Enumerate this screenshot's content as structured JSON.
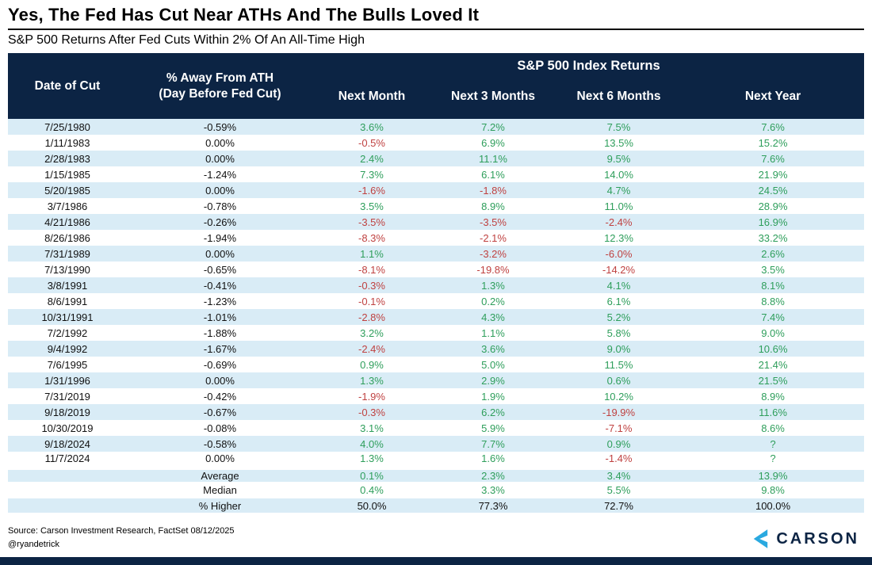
{
  "page": {
    "title": "Yes, The Fed Has Cut Near ATHs And The Bulls Loved It",
    "subtitle": "S&P 500 Returns After Fed Cuts Within 2% Of An All-Time High"
  },
  "chart_data": {
    "type": "table",
    "title": "Yes, The Fed Has Cut Near ATHs And The Bulls Loved It",
    "subtitle": "S&P 500 Returns After Fed Cuts Within 2% Of An All-Time High",
    "group_header": "S&P 500 Index Returns",
    "columns": [
      "Date of Cut",
      "% Away From ATH\n(Day Before Fed Cut)",
      "Next Month",
      "Next 3 Months",
      "Next 6 Months",
      "Next Year"
    ],
    "rows": [
      [
        "7/25/1980",
        "-0.59%",
        "3.6%",
        "7.2%",
        "7.5%",
        "7.6%"
      ],
      [
        "1/11/1983",
        "0.00%",
        "-0.5%",
        "6.9%",
        "13.5%",
        "15.2%"
      ],
      [
        "2/28/1983",
        "0.00%",
        "2.4%",
        "11.1%",
        "9.5%",
        "7.6%"
      ],
      [
        "1/15/1985",
        "-1.24%",
        "7.3%",
        "6.1%",
        "14.0%",
        "21.9%"
      ],
      [
        "5/20/1985",
        "0.00%",
        "-1.6%",
        "-1.8%",
        "4.7%",
        "24.5%"
      ],
      [
        "3/7/1986",
        "-0.78%",
        "3.5%",
        "8.9%",
        "11.0%",
        "28.9%"
      ],
      [
        "4/21/1986",
        "-0.26%",
        "-3.5%",
        "-3.5%",
        "-2.4%",
        "16.9%"
      ],
      [
        "8/26/1986",
        "-1.94%",
        "-8.3%",
        "-2.1%",
        "12.3%",
        "33.2%"
      ],
      [
        "7/31/1989",
        "0.00%",
        "1.1%",
        "-3.2%",
        "-6.0%",
        "2.6%"
      ],
      [
        "7/13/1990",
        "-0.65%",
        "-8.1%",
        "-19.8%",
        "-14.2%",
        "3.5%"
      ],
      [
        "3/8/1991",
        "-0.41%",
        "-0.3%",
        "1.3%",
        "4.1%",
        "8.1%"
      ],
      [
        "8/6/1991",
        "-1.23%",
        "-0.1%",
        "0.2%",
        "6.1%",
        "8.8%"
      ],
      [
        "10/31/1991",
        "-1.01%",
        "-2.8%",
        "4.3%",
        "5.2%",
        "7.4%"
      ],
      [
        "7/2/1992",
        "-1.88%",
        "3.2%",
        "1.1%",
        "5.8%",
        "9.0%"
      ],
      [
        "9/4/1992",
        "-1.67%",
        "-2.4%",
        "3.6%",
        "9.0%",
        "10.6%"
      ],
      [
        "7/6/1995",
        "-0.69%",
        "0.9%",
        "5.0%",
        "11.5%",
        "21.4%"
      ],
      [
        "1/31/1996",
        "0.00%",
        "1.3%",
        "2.9%",
        "0.6%",
        "21.5%"
      ],
      [
        "7/31/2019",
        "-0.42%",
        "-1.9%",
        "1.9%",
        "10.2%",
        "8.9%"
      ],
      [
        "9/18/2019",
        "-0.67%",
        "-0.3%",
        "6.2%",
        "-19.9%",
        "11.6%"
      ],
      [
        "10/30/2019",
        "-0.08%",
        "3.1%",
        "5.9%",
        "-7.1%",
        "8.6%"
      ],
      [
        "9/18/2024",
        "-0.58%",
        "4.0%",
        "7.7%",
        "0.9%",
        "?"
      ],
      [
        "11/7/2024",
        "0.00%",
        "1.3%",
        "1.6%",
        "-1.4%",
        "?"
      ]
    ],
    "summary_rows": [
      {
        "label": "Average",
        "values": [
          "0.1%",
          "2.3%",
          "3.4%",
          "13.9%"
        ],
        "value_style": "signed"
      },
      {
        "label": "Median",
        "values": [
          "0.4%",
          "3.3%",
          "5.5%",
          "9.8%"
        ],
        "value_style": "signed"
      },
      {
        "label": "% Higher",
        "values": [
          "50.0%",
          "77.3%",
          "72.7%",
          "100.0%"
        ],
        "value_style": "plain"
      }
    ]
  },
  "footer": {
    "source": "Source: Carson Investment Research, FactSet 08/12/2025",
    "handle": "@ryandetrick",
    "logo_text": "CARSON"
  },
  "colors": {
    "header_bg": "#0c2444",
    "row_alt_bg": "#d9ecf6",
    "positive": "#2e9e5b",
    "negative": "#bf4140",
    "logo_blue": "#2aa9e0"
  }
}
